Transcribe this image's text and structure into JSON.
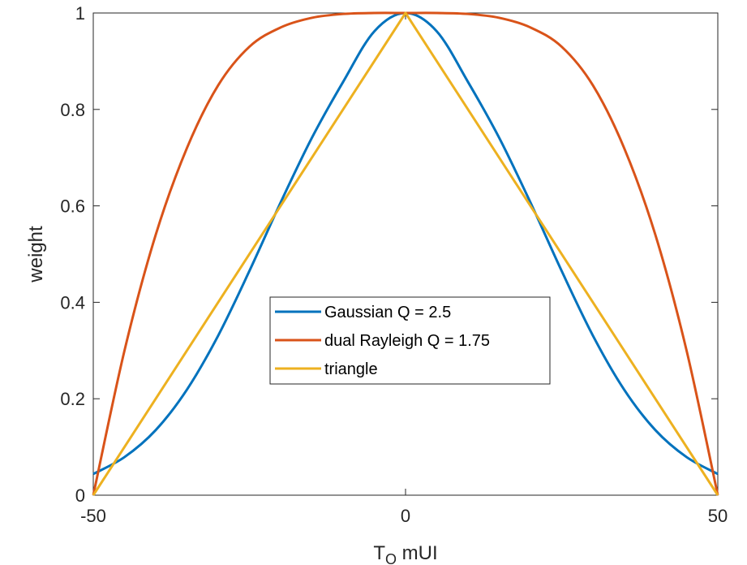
{
  "chart_data": {
    "type": "line",
    "xlabel": "T_O mUI",
    "ylabel": "weight",
    "xlim": [
      -50,
      50
    ],
    "ylim": [
      0,
      1
    ],
    "xticks": [
      "-50",
      "0",
      "50"
    ],
    "yticks": [
      "0",
      "0.2",
      "0.4",
      "0.6",
      "0.8",
      "1"
    ],
    "grid": false,
    "legend_position": "center",
    "series": [
      {
        "name": "Gaussian Q = 2.5",
        "color": "#0072BD",
        "x": [
          -50,
          -45,
          -40,
          -35,
          -30,
          -25,
          -20,
          -15,
          -10,
          -5,
          0,
          5,
          10,
          15,
          20,
          25,
          30,
          35,
          40,
          45,
          50
        ],
        "y": [
          0.044,
          0.079,
          0.135,
          0.219,
          0.331,
          0.465,
          0.607,
          0.741,
          0.857,
          0.962,
          1.0,
          0.962,
          0.857,
          0.741,
          0.607,
          0.465,
          0.331,
          0.219,
          0.135,
          0.079,
          0.044
        ]
      },
      {
        "name": "dual Rayleigh Q = 1.75",
        "color": "#D95319",
        "x": [
          -50,
          -45,
          -40,
          -35,
          -30,
          -25,
          -20,
          -15,
          -10,
          -5,
          0,
          5,
          10,
          15,
          20,
          25,
          30,
          35,
          40,
          45,
          50
        ],
        "y": [
          0.0,
          0.3,
          0.54,
          0.72,
          0.85,
          0.93,
          0.97,
          0.99,
          0.998,
          1.0,
          1.0,
          1.0,
          0.998,
          0.99,
          0.97,
          0.93,
          0.85,
          0.72,
          0.54,
          0.3,
          0.0
        ]
      },
      {
        "name": "triangle",
        "color": "#EDB120",
        "x": [
          -50,
          0,
          50
        ],
        "y": [
          0,
          1,
          0
        ]
      }
    ]
  }
}
